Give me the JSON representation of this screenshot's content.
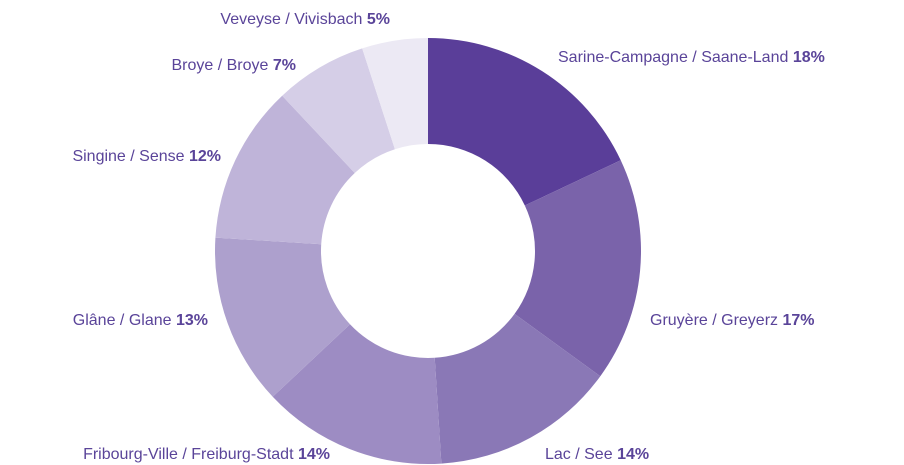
{
  "chart_data": {
    "type": "pie",
    "donut": true,
    "categories": [
      "Sarine-Campagne / Saane-Land",
      "Gruyère / Greyerz",
      "Lac / See",
      "Fribourg-Ville / Freiburg-Stadt",
      "Glâne / Glane",
      "Singine / Sense",
      "Broye / Broye",
      "Veveyse / Vivisbach"
    ],
    "values": [
      18,
      17,
      14,
      14,
      13,
      12,
      7,
      5
    ],
    "value_labels": [
      "18%",
      "17%",
      "14%",
      "14%",
      "13%",
      "12%",
      "7%",
      "5%"
    ],
    "colors": [
      "#5a3e99",
      "#7a63aa",
      "#8a78b6",
      "#9d8cc3",
      "#ada0cd",
      "#bfb4d9",
      "#d5cee7",
      "#ece9f4"
    ]
  }
}
